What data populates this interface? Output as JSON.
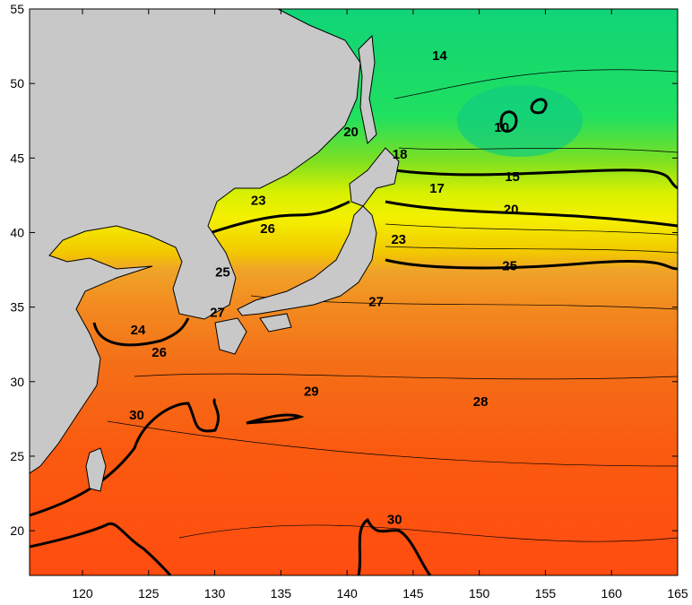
{
  "map": {
    "xlim": [
      116,
      165
    ],
    "ylim": [
      17,
      55
    ],
    "xticks": [
      120,
      125,
      130,
      135,
      140,
      145,
      150,
      155,
      160,
      165
    ],
    "yticks": [
      20,
      25,
      30,
      35,
      40,
      45,
      50,
      55
    ],
    "contour_labels": [
      {
        "label": "14",
        "lon": 147.0,
        "lat": 51.8
      },
      {
        "label": "10",
        "lon": 151.7,
        "lat": 47.0
      },
      {
        "label": "20",
        "lon": 140.3,
        "lat": 46.7
      },
      {
        "label": "18",
        "lon": 144.0,
        "lat": 45.2
      },
      {
        "label": "15",
        "lon": 152.5,
        "lat": 43.7
      },
      {
        "label": "17",
        "lon": 146.8,
        "lat": 42.9
      },
      {
        "label": "20",
        "lon": 152.4,
        "lat": 41.5
      },
      {
        "label": "23",
        "lon": 133.3,
        "lat": 42.1
      },
      {
        "label": "26",
        "lon": 134.0,
        "lat": 40.2
      },
      {
        "label": "23",
        "lon": 143.9,
        "lat": 39.5
      },
      {
        "label": "25",
        "lon": 152.3,
        "lat": 37.7
      },
      {
        "label": "25",
        "lon": 130.6,
        "lat": 37.3
      },
      {
        "label": "27",
        "lon": 130.2,
        "lat": 34.6
      },
      {
        "label": "27",
        "lon": 142.2,
        "lat": 35.3
      },
      {
        "label": "24",
        "lon": 124.2,
        "lat": 33.4
      },
      {
        "label": "26",
        "lon": 125.8,
        "lat": 31.9
      },
      {
        "label": "29",
        "lon": 137.3,
        "lat": 29.3
      },
      {
        "label": "28",
        "lon": 150.1,
        "lat": 28.6
      },
      {
        "label": "30",
        "lon": 124.1,
        "lat": 27.7
      },
      {
        "label": "30",
        "lon": 143.6,
        "lat": 20.7
      }
    ]
  }
}
